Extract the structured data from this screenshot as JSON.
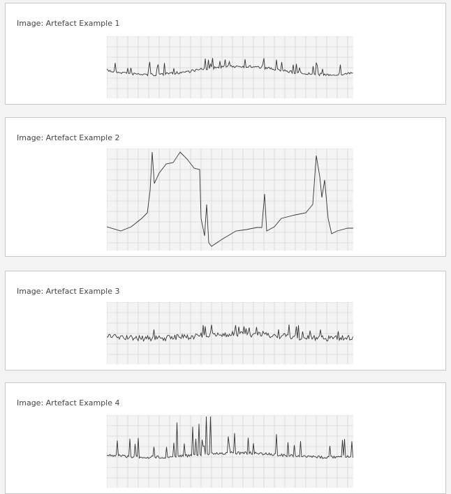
{
  "cards": [
    {
      "caption": "Image: Artefact Example 1"
    },
    {
      "caption": "Image: Artefact Example 2"
    },
    {
      "caption": "Image: Artefact Example 3"
    },
    {
      "caption": "Image: Artefact Example 4"
    }
  ]
}
